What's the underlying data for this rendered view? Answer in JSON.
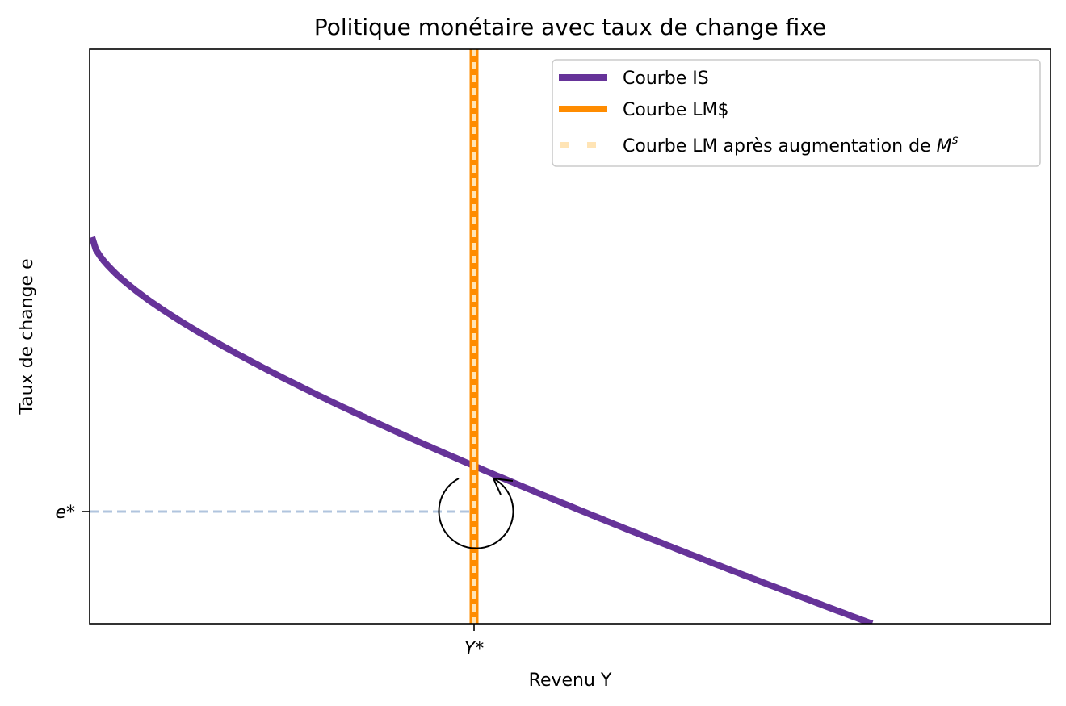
{
  "chart_data": {
    "type": "line",
    "title": "Politique monétaire avec taux de change fixe",
    "xlabel": "Revenu Y",
    "ylabel": "Taux de change e",
    "xticks": [
      "Y*"
    ],
    "yticks": [
      "e*"
    ],
    "grid": false,
    "legend_position": "top-right",
    "series": [
      {
        "name": "Courbe IS",
        "color": "#663399",
        "style": "solid"
      },
      {
        "name": "Courbe LM$",
        "color": "#ff8c00",
        "style": "solid"
      },
      {
        "name": "Courbe LM après augmentation de M^s",
        "color": "#ffe4b5",
        "style": "dotted"
      }
    ],
    "annotations": [
      {
        "kind": "reference-line",
        "axis": "y",
        "label": "e*",
        "color": "#b0c4de",
        "style": "dashed"
      },
      {
        "kind": "reference-line",
        "axis": "x",
        "label": "Y*",
        "color": "#b0c4de",
        "style": "dashed"
      },
      {
        "kind": "circular-arrow",
        "description": "counter-clockwise arrow around equilibrium"
      }
    ]
  }
}
